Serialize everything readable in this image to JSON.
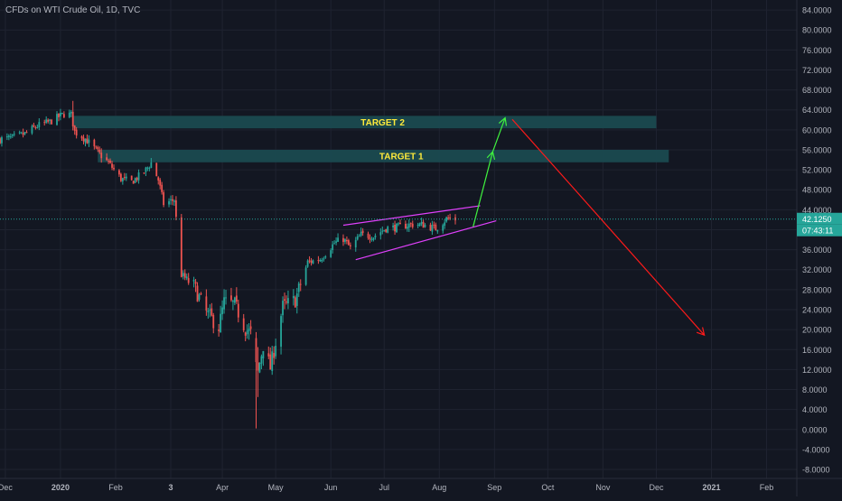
{
  "chart_title": "CFDs on WTI Crude Oil, 1D, TVC",
  "colors": {
    "background": "#131722",
    "grid": "#1f2330",
    "axis_text": "#b2b5be",
    "up": "#26a69a",
    "down": "#ef5350",
    "zone_fill": "#1a4a50",
    "zone_text": "#ffeb3b",
    "channel": "#e040fb",
    "up_arrow": "#3ff23f",
    "down_arrow": "#ff1a1a",
    "price_tag": "#26a69a"
  },
  "price_tag": {
    "price": "42.1250",
    "countdown": "07:43:11"
  },
  "chart_data": {
    "type": "candlestick",
    "title": "CFDs on WTI Crude Oil, 1D, TVC",
    "ylim": [
      -9.8,
      86
    ],
    "xlim": [
      "2019-11-28",
      "2021-02-18"
    ],
    "y_ticks": [
      "84.0000",
      "80.0000",
      "76.0000",
      "72.0000",
      "68.0000",
      "64.0000",
      "60.0000",
      "56.0000",
      "52.0000",
      "48.0000",
      "44.0000",
      "40.0000",
      "36.0000",
      "32.0000",
      "28.0000",
      "24.0000",
      "20.0000",
      "16.0000",
      "12.0000",
      "8.0000",
      "4.0000",
      "0.0000",
      "-4.0000",
      "-8.0000"
    ],
    "x_ticks": [
      {
        "label": "Dec",
        "date": "2019-12-01"
      },
      {
        "label": "2020",
        "date": "2020-01-01"
      },
      {
        "label": "Feb",
        "date": "2020-02-01"
      },
      {
        "label": "3",
        "date": "2020-03-03"
      },
      {
        "label": "Apr",
        "date": "2020-04-01"
      },
      {
        "label": "May",
        "date": "2020-05-01"
      },
      {
        "label": "Jun",
        "date": "2020-06-01"
      },
      {
        "label": "Jul",
        "date": "2020-07-01"
      },
      {
        "label": "Aug",
        "date": "2020-08-01"
      },
      {
        "label": "Sep",
        "date": "2020-09-01"
      },
      {
        "label": "Oct",
        "date": "2020-10-01"
      },
      {
        "label": "Nov",
        "date": "2020-11-01"
      },
      {
        "label": "Dec",
        "date": "2020-12-01"
      },
      {
        "label": "2021",
        "date": "2021-01-01"
      },
      {
        "label": "Feb",
        "date": "2021-02-01"
      }
    ],
    "current_price": 42.125,
    "path": [
      [
        "2019-11-28",
        58.1
      ],
      [
        "2019-12-05",
        58.4
      ],
      [
        "2019-12-12",
        59.2
      ],
      [
        "2019-12-19",
        60.8
      ],
      [
        "2019-12-26",
        61.6
      ],
      [
        "2020-01-03",
        63.2
      ],
      [
        "2020-01-07",
        63.0
      ],
      [
        "2020-01-09",
        59.6
      ],
      [
        "2020-01-15",
        58.2
      ],
      [
        "2020-01-22",
        55.5
      ],
      [
        "2020-01-28",
        53.4
      ],
      [
        "2020-02-04",
        50.2
      ],
      [
        "2020-02-10",
        49.6
      ],
      [
        "2020-02-17",
        51.5
      ],
      [
        "2020-02-21",
        53.4
      ],
      [
        "2020-02-25",
        50.0
      ],
      [
        "2020-02-28",
        45.2
      ],
      [
        "2020-03-05",
        46.0
      ],
      [
        "2020-03-09",
        31.0
      ],
      [
        "2020-03-16",
        28.7
      ],
      [
        "2020-03-23",
        23.4
      ],
      [
        "2020-03-30",
        20.5
      ],
      [
        "2020-04-02",
        25.5
      ],
      [
        "2020-04-08",
        25.0
      ],
      [
        "2020-04-14",
        20.2
      ],
      [
        "2020-04-20",
        18.3
      ],
      [
        "2020-04-21",
        11.6
      ],
      [
        "2020-04-24",
        16.9
      ],
      [
        "2020-04-28",
        12.3
      ],
      [
        "2020-05-05",
        24.6
      ],
      [
        "2020-05-12",
        25.9
      ],
      [
        "2020-05-19",
        33.5
      ],
      [
        "2020-05-26",
        34.1
      ],
      [
        "2020-06-03",
        37.3
      ],
      [
        "2020-06-08",
        38.2
      ],
      [
        "2020-06-12",
        36.3
      ],
      [
        "2020-06-18",
        39.0
      ],
      [
        "2020-06-25",
        38.7
      ],
      [
        "2020-07-02",
        40.3
      ],
      [
        "2020-07-09",
        40.5
      ],
      [
        "2020-07-16",
        41.1
      ],
      [
        "2020-07-23",
        41.0
      ],
      [
        "2020-07-30",
        40.2
      ],
      [
        "2020-08-05",
        42.2
      ],
      [
        "2020-08-10",
        42.1
      ]
    ],
    "zones": [
      {
        "label": "TARGET 2",
        "x1": "2020-01-08",
        "x2": "2020-12-01",
        "y1": 60.3,
        "y2": 62.8
      },
      {
        "label": "TARGET 1",
        "x1": "2020-01-22",
        "x2": "2020-12-08",
        "y1": 53.5,
        "y2": 56.0
      }
    ],
    "trendlines": [
      {
        "kind": "channel-upper",
        "x1": "2020-06-08",
        "y1": 40.9,
        "x2": "2020-08-24",
        "y2": 44.8
      },
      {
        "kind": "channel-lower",
        "x1": "2020-06-15",
        "y1": 34.0,
        "x2": "2020-09-02",
        "y2": 41.8
      },
      {
        "kind": "arrow-up",
        "x1": "2020-08-20",
        "y1": 40.6,
        "x2": "2020-08-31",
        "y2": 55.6
      },
      {
        "kind": "arrow-up",
        "x1": "2020-08-31",
        "y1": 55.6,
        "x2": "2020-09-07",
        "y2": 62.4
      },
      {
        "kind": "arrow-down",
        "x1": "2020-09-11",
        "y1": 62.1,
        "x2": "2020-12-28",
        "y2": 18.9
      }
    ]
  }
}
